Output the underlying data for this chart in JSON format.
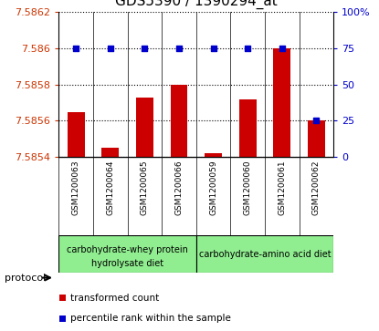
{
  "title": "GDS5390 / 1390294_at",
  "samples": [
    "GSM1200063",
    "GSM1200064",
    "GSM1200065",
    "GSM1200066",
    "GSM1200059",
    "GSM1200060",
    "GSM1200061",
    "GSM1200062"
  ],
  "bar_values": [
    7.58565,
    7.58545,
    7.58573,
    7.5858,
    7.58542,
    7.58572,
    7.586,
    7.5856
  ],
  "percentile_values": [
    75,
    75,
    75,
    75,
    75,
    75,
    75,
    25
  ],
  "ylim_left": [
    7.5854,
    7.5862
  ],
  "ylim_right": [
    0,
    100
  ],
  "yticks_left": [
    7.5854,
    7.5856,
    7.5858,
    7.586,
    7.5862
  ],
  "ytick_labels_left": [
    "7.5854",
    "7.5856",
    "7.5858",
    "7.586",
    "7.5862"
  ],
  "yticks_right": [
    0,
    25,
    50,
    75,
    100
  ],
  "ytick_labels_right": [
    "0",
    "25",
    "50",
    "75",
    "100%"
  ],
  "bar_color": "#cc0000",
  "percentile_color": "#0000cc",
  "bg_color": "#d3d3d3",
  "plot_bg": "#ffffff",
  "group1_label_line1": "carbohydrate-whey protein",
  "group1_label_line2": "hydrolysate diet",
  "group2_label": "carbohydrate-amino acid diet",
  "group_color": "#90ee90",
  "protocol_label": "protocol",
  "legend_red_label": "transformed count",
  "legend_blue_label": "percentile rank within the sample",
  "title_fontsize": 11,
  "tick_fontsize": 8,
  "sample_fontsize": 6.5,
  "group_fontsize": 7,
  "legend_fontsize": 8
}
